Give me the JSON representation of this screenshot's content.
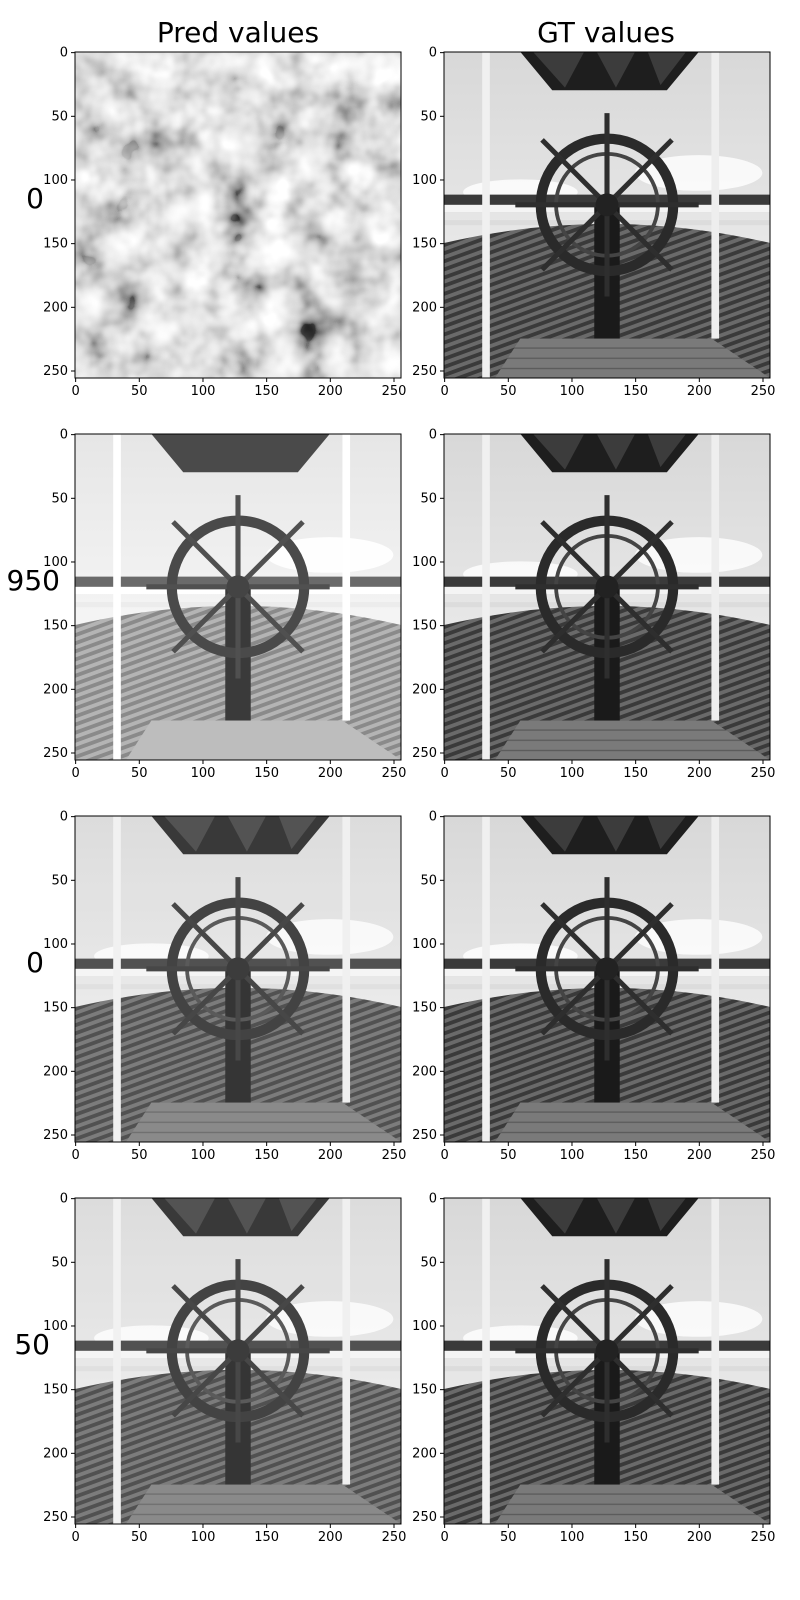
{
  "figure": {
    "column_titles": [
      "Pred values",
      "GT values"
    ],
    "row_labels": [
      "0",
      "950",
      "0",
      "50"
    ],
    "panels": [
      {
        "row": 0,
        "col": 0,
        "kind": "noise",
        "description_key": "pred-noise"
      },
      {
        "row": 0,
        "col": 1,
        "kind": "photo",
        "description_key": "gt-ship-wheel"
      },
      {
        "row": 1,
        "col": 0,
        "kind": "photo-washed",
        "description_key": "pred-ship-wheel"
      },
      {
        "row": 1,
        "col": 1,
        "kind": "photo",
        "description_key": "gt-ship-wheel"
      },
      {
        "row": 2,
        "col": 0,
        "kind": "photo-contrast",
        "description_key": "pred-ship-wheel"
      },
      {
        "row": 2,
        "col": 1,
        "kind": "photo",
        "description_key": "gt-ship-wheel"
      },
      {
        "row": 3,
        "col": 0,
        "kind": "photo-contrast",
        "description_key": "pred-ship-wheel"
      },
      {
        "row": 3,
        "col": 1,
        "kind": "photo",
        "description_key": "gt-ship-wheel"
      }
    ],
    "x_ticks": [
      "0",
      "50",
      "100",
      "150",
      "200",
      "250"
    ],
    "y_ticks": [
      "0",
      "50",
      "100",
      "150",
      "200",
      "250"
    ],
    "axis_range": [
      0,
      255
    ]
  }
}
